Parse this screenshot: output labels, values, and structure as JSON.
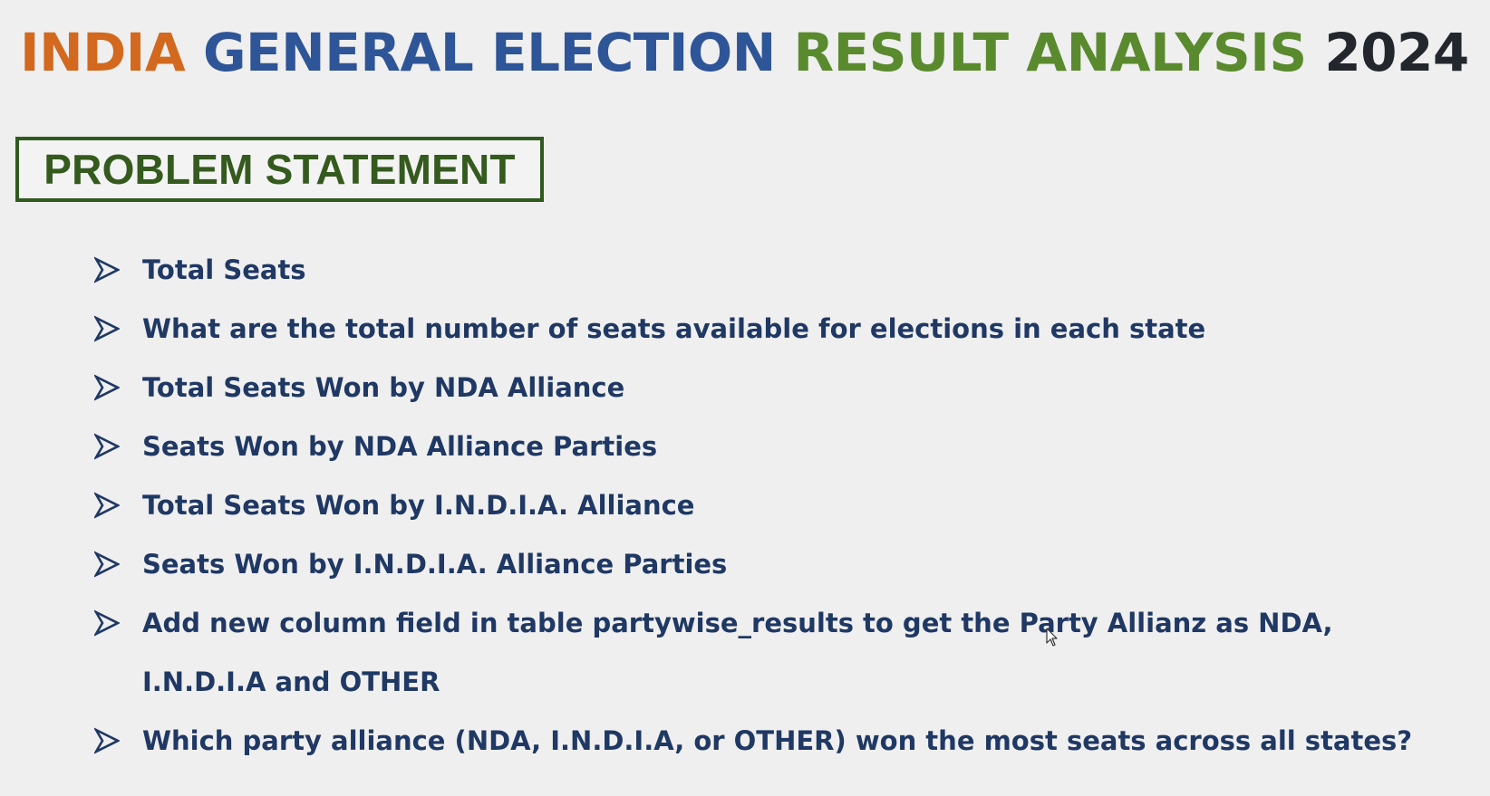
{
  "title": {
    "parts": [
      {
        "text": "INDIA",
        "color": "#d2691e"
      },
      {
        "text": "GENERAL ELECTION",
        "color": "#2e5597"
      },
      {
        "text": "RESULT ANALYSIS",
        "color": "#5a8a2e"
      },
      {
        "text": "2024",
        "color": "#23272d"
      }
    ]
  },
  "section_heading": "PROBLEM STATEMENT",
  "bullet_icon": "arrow-bullet-icon",
  "items": [
    "Total Seats",
    "What are the total number of seats available for elections in each state",
    "Total Seats Won by NDA Alliance",
    "Seats Won by NDA Alliance Parties",
    "Total Seats Won by I.N.D.I.A. Alliance",
    "Seats Won by I.N.D.I.A. Alliance Parties",
    "Add new column field in table partywise_results to get the Party Allianz as NDA, I.N.D.I.A and OTHER",
    "Which party alliance (NDA, I.N.D.I.A, or OTHER) won the most seats across all states?"
  ],
  "colors": {
    "background": "#efefef",
    "heading_green": "#345a1e",
    "body_navy": "#1f3864"
  }
}
